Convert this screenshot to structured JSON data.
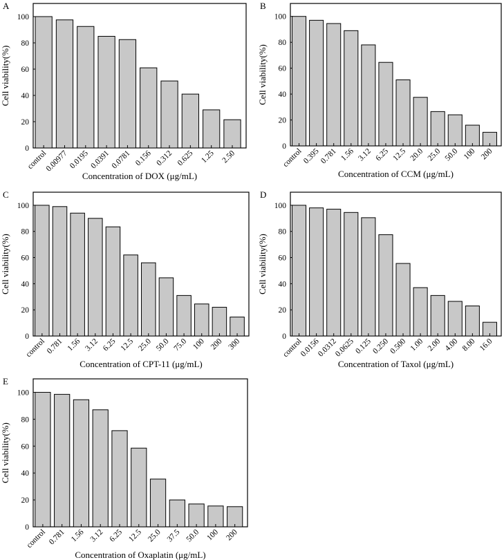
{
  "chart_data": [
    {
      "type": "bar",
      "panel_label": "A",
      "categories": [
        "control",
        "0.00977",
        "0.0195",
        "0.0391",
        "0.0781",
        "0.156",
        "0.312",
        "0.625",
        "1.25",
        "2.50"
      ],
      "values": [
        100,
        97.5,
        92.5,
        85,
        82.5,
        61,
        51,
        41,
        29,
        21.5
      ],
      "xlabel": "Concentration of DOX  (μg/mL)",
      "ylabel": "Cell viability(%)",
      "ylim": [
        0,
        110
      ],
      "yticks": [
        0,
        20,
        40,
        60,
        80,
        100
      ]
    },
    {
      "type": "bar",
      "panel_label": "B",
      "categories": [
        "control",
        "0.395",
        "0.781",
        "1.56",
        "3.12",
        "6.25",
        "12.5",
        "20.0",
        "25.0",
        "50.0",
        "100",
        "200"
      ],
      "values": [
        100,
        97,
        94.5,
        89,
        78,
        64.5,
        51,
        37.5,
        26.5,
        24,
        16,
        10.5
      ],
      "xlabel": "Concentration of CCM  (μg/mL)",
      "ylabel": "Cell viability(%)",
      "ylim": [
        0,
        110
      ],
      "yticks": [
        0,
        20,
        40,
        60,
        80,
        100
      ]
    },
    {
      "type": "bar",
      "panel_label": "C",
      "categories": [
        "control",
        "0.781",
        "1.56",
        "3.12",
        "6.25",
        "12.5",
        "25.0",
        "50.0",
        "75.0",
        "100",
        "200",
        "300"
      ],
      "values": [
        100,
        99,
        94,
        90,
        83.5,
        62,
        56,
        44.5,
        31,
        24.5,
        22,
        14.5
      ],
      "xlabel": "Concentration of CPT-11  (μg/mL)",
      "ylabel": "Cell viability(%)",
      "ylim": [
        0,
        110
      ],
      "yticks": [
        0,
        20,
        40,
        60,
        80,
        100
      ]
    },
    {
      "type": "bar",
      "panel_label": "D",
      "categories": [
        "control",
        "0.0156",
        "0.0312",
        "0.0625",
        "0.125",
        "0.250",
        "0.500",
        "1.00",
        "2.00",
        "4.00",
        "8.00",
        "16.0"
      ],
      "values": [
        100,
        98,
        97,
        94.5,
        90.5,
        77.5,
        55.5,
        37,
        31,
        26.5,
        23,
        10.5
      ],
      "xlabel": "Concentration of Taxol  (μg/mL)",
      "ylabel": "Cell viability(%)",
      "ylim": [
        0,
        110
      ],
      "yticks": [
        0,
        20,
        40,
        60,
        80,
        100
      ]
    },
    {
      "type": "bar",
      "panel_label": "E",
      "categories": [
        "control",
        "0.781",
        "1.56",
        "3.12",
        "6.25",
        "12.5",
        "25.0",
        "37.5",
        "50.0",
        "100",
        "200"
      ],
      "values": [
        100,
        98.5,
        94.5,
        87,
        71.5,
        58.5,
        35.5,
        20,
        17,
        15.5,
        15
      ],
      "xlabel": "Concentration of Oxaplatin  (μg/mL)",
      "ylabel": "Cell viability(%)",
      "ylim": [
        0,
        110
      ],
      "yticks": [
        0,
        20,
        40,
        60,
        80,
        100
      ]
    }
  ]
}
